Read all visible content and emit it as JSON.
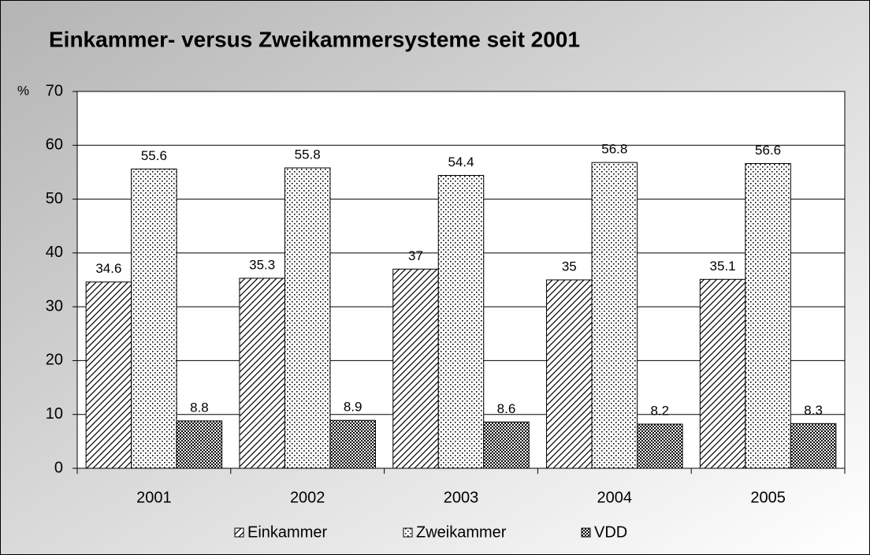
{
  "chart_data": {
    "type": "bar",
    "title": "Einkammer- versus Zweikammersysteme seit 2001",
    "y_label": "%",
    "categories": [
      "2001",
      "2002",
      "2003",
      "2004",
      "2005"
    ],
    "series": [
      {
        "name": "Einkammer",
        "color": "#000000",
        "values": [
          34.6,
          35.3,
          37,
          35,
          35.1
        ]
      },
      {
        "name": "Zweikammer",
        "color": "#000000",
        "values": [
          55.6,
          55.8,
          54.4,
          56.8,
          56.6
        ]
      },
      {
        "name": "VDD",
        "color": "#000000",
        "values": [
          8.8,
          8.9,
          8.6,
          8.2,
          8.3
        ]
      }
    ],
    "ylim": [
      0,
      70
    ],
    "yticks": [
      0,
      10,
      20,
      30,
      40,
      50,
      60,
      70
    ],
    "grid": true,
    "legend": "bottom"
  }
}
